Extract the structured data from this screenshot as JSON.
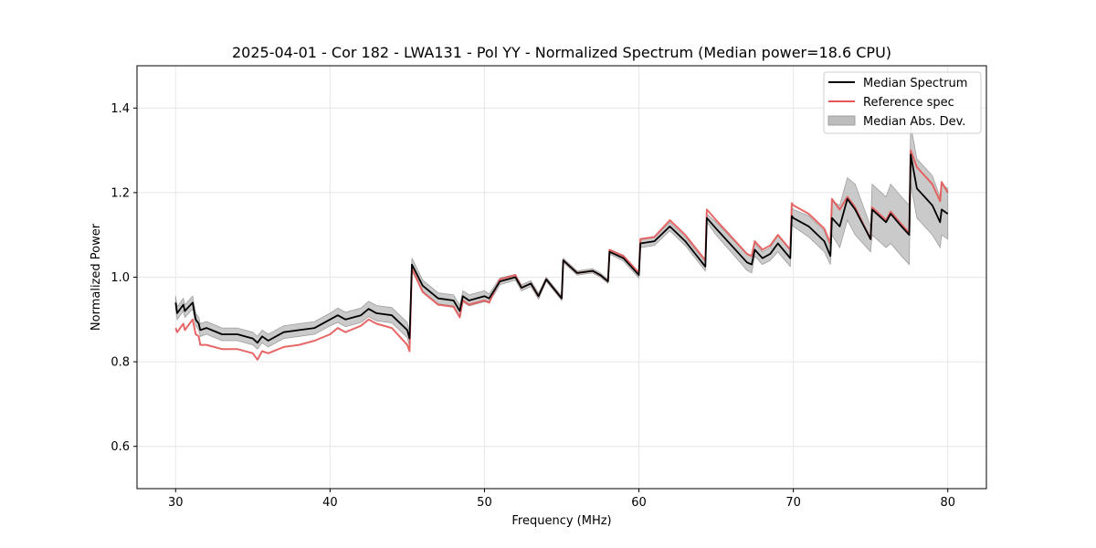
{
  "chart_data": {
    "type": "line",
    "title": "2025-04-01 - Cor 182 - LWA131 - Pol YY - Normalized Spectrum (Median power=18.6 CPU)",
    "xlabel": "Frequency (MHz)",
    "ylabel": "Normalized Power",
    "xlim": [
      27.5,
      82.5
    ],
    "ylim": [
      0.5,
      1.5
    ],
    "xticks": [
      30,
      40,
      50,
      60,
      70,
      80
    ],
    "yticks": [
      0.6,
      0.8,
      1.0,
      1.2,
      1.4
    ],
    "xtick_labels": [
      "30",
      "40",
      "50",
      "60",
      "70",
      "80"
    ],
    "ytick_labels": [
      "0.6",
      "0.8",
      "1.0",
      "1.2",
      "1.4"
    ],
    "grid": true,
    "legend_position": "top-right",
    "colors": {
      "median": "#000000",
      "reference": "#e45756",
      "mad_fill": "#bdbdbd",
      "grid": "#e6e6e6"
    },
    "legend": [
      {
        "label": "Median Spectrum",
        "kind": "line",
        "color": "#000000"
      },
      {
        "label": "Reference spec",
        "kind": "line",
        "color": "#e45756"
      },
      {
        "label": "Median Abs. Dev.",
        "kind": "patch",
        "color": "#bdbdbd"
      }
    ],
    "series": [
      {
        "name": "Median Spectrum",
        "x": [
          30.0,
          30.1,
          30.5,
          30.6,
          31.1,
          31.3,
          31.5,
          31.6,
          32.0,
          33.0,
          34.0,
          35.0,
          35.3,
          35.6,
          36.0,
          37.0,
          38.0,
          39.0,
          40.0,
          40.5,
          41.0,
          42.0,
          42.5,
          43.0,
          44.0,
          45.0,
          45.15,
          45.3,
          46.0,
          47.0,
          48.0,
          48.4,
          48.6,
          49.0,
          50.0,
          50.3,
          51.0,
          52.0,
          52.4,
          53.0,
          53.5,
          54.0,
          55.0,
          55.1,
          56.0,
          57.0,
          57.5,
          58.0,
          58.1,
          59.0,
          60.0,
          60.1,
          61.0,
          62.0,
          63.0,
          64.3,
          64.4,
          65.0,
          66.0,
          67.0,
          67.3,
          67.5,
          68.0,
          68.5,
          69.0,
          69.8,
          69.9,
          70.0,
          71.0,
          72.0,
          72.4,
          72.5,
          73.0,
          73.5,
          74.0,
          75.0,
          75.1,
          76.0,
          76.3,
          77.0,
          77.5,
          77.6,
          78.0,
          79.0,
          79.5,
          79.6,
          80.0
        ],
        "values": [
          0.94,
          0.915,
          0.935,
          0.92,
          0.94,
          0.9,
          0.89,
          0.875,
          0.88,
          0.865,
          0.865,
          0.855,
          0.845,
          0.86,
          0.85,
          0.87,
          0.875,
          0.88,
          0.9,
          0.91,
          0.9,
          0.91,
          0.925,
          0.915,
          0.91,
          0.875,
          0.855,
          1.03,
          0.98,
          0.95,
          0.945,
          0.92,
          0.955,
          0.945,
          0.955,
          0.95,
          0.99,
          1.0,
          0.975,
          0.985,
          0.955,
          0.995,
          0.95,
          1.04,
          1.01,
          1.015,
          1.005,
          0.99,
          1.06,
          1.045,
          1.005,
          1.08,
          1.085,
          1.12,
          1.085,
          1.025,
          1.14,
          1.115,
          1.075,
          1.035,
          1.03,
          1.065,
          1.045,
          1.055,
          1.08,
          1.045,
          1.145,
          1.14,
          1.12,
          1.085,
          1.05,
          1.14,
          1.12,
          1.185,
          1.16,
          1.09,
          1.16,
          1.13,
          1.15,
          1.12,
          1.1,
          1.29,
          1.21,
          1.17,
          1.13,
          1.16,
          1.15
        ]
      },
      {
        "name": "Reference spec",
        "x": [
          30.0,
          30.1,
          30.5,
          30.6,
          31.1,
          31.3,
          31.5,
          31.6,
          32.0,
          33.0,
          34.0,
          35.0,
          35.3,
          35.6,
          36.0,
          37.0,
          38.0,
          39.0,
          40.0,
          40.5,
          41.0,
          42.0,
          42.5,
          43.0,
          44.0,
          45.0,
          45.15,
          45.3,
          46.0,
          47.0,
          48.0,
          48.4,
          48.6,
          49.0,
          50.0,
          50.3,
          51.0,
          52.0,
          52.4,
          53.0,
          53.5,
          54.0,
          55.0,
          55.1,
          56.0,
          57.0,
          57.5,
          58.0,
          58.1,
          59.0,
          60.0,
          60.1,
          61.0,
          62.0,
          63.0,
          64.3,
          64.4,
          65.0,
          66.0,
          67.0,
          67.3,
          67.5,
          68.0,
          68.5,
          69.0,
          69.8,
          69.9,
          70.0,
          71.0,
          72.0,
          72.4,
          72.5,
          73.0,
          73.5,
          74.0,
          75.0,
          75.1,
          76.0,
          76.3,
          77.0,
          77.5,
          77.6,
          78.0,
          79.0,
          79.5,
          79.6,
          80.0
        ],
        "values": [
          0.88,
          0.87,
          0.89,
          0.875,
          0.9,
          0.865,
          0.86,
          0.84,
          0.84,
          0.83,
          0.83,
          0.82,
          0.805,
          0.825,
          0.82,
          0.835,
          0.84,
          0.85,
          0.865,
          0.88,
          0.87,
          0.885,
          0.9,
          0.89,
          0.88,
          0.84,
          0.825,
          1.02,
          0.965,
          0.935,
          0.93,
          0.905,
          0.945,
          0.935,
          0.945,
          0.94,
          0.995,
          1.005,
          0.975,
          0.985,
          0.955,
          0.995,
          0.95,
          1.04,
          1.01,
          1.015,
          1.005,
          0.99,
          1.065,
          1.05,
          1.01,
          1.09,
          1.095,
          1.135,
          1.1,
          1.04,
          1.16,
          1.135,
          1.095,
          1.055,
          1.05,
          1.085,
          1.065,
          1.075,
          1.1,
          1.065,
          1.175,
          1.17,
          1.15,
          1.115,
          1.08,
          1.185,
          1.16,
          1.19,
          1.165,
          1.09,
          1.165,
          1.135,
          1.155,
          1.125,
          1.105,
          1.3,
          1.26,
          1.22,
          1.18,
          1.225,
          1.2
        ]
      },
      {
        "name": "Median Abs. Dev.",
        "x": [
          30.0,
          30.1,
          30.5,
          30.6,
          31.1,
          31.3,
          31.5,
          31.6,
          32.0,
          33.0,
          34.0,
          35.0,
          35.3,
          35.6,
          36.0,
          37.0,
          38.0,
          39.0,
          40.0,
          40.5,
          41.0,
          42.0,
          42.5,
          43.0,
          44.0,
          45.0,
          45.15,
          45.3,
          46.0,
          47.0,
          48.0,
          48.4,
          48.6,
          49.0,
          50.0,
          50.3,
          51.0,
          52.0,
          52.4,
          53.0,
          53.5,
          54.0,
          55.0,
          55.1,
          56.0,
          57.0,
          57.5,
          58.0,
          58.1,
          59.0,
          60.0,
          60.1,
          61.0,
          62.0,
          63.0,
          64.3,
          64.4,
          65.0,
          66.0,
          67.0,
          67.3,
          67.5,
          68.0,
          68.5,
          69.0,
          69.8,
          69.9,
          70.0,
          71.0,
          72.0,
          72.4,
          72.5,
          73.0,
          73.5,
          74.0,
          75.0,
          75.1,
          76.0,
          76.3,
          77.0,
          77.5,
          77.6,
          78.0,
          79.0,
          79.5,
          79.6,
          80.0
        ],
        "lower": [
          0.925,
          0.9,
          0.92,
          0.905,
          0.925,
          0.885,
          0.875,
          0.86,
          0.865,
          0.85,
          0.85,
          0.84,
          0.83,
          0.845,
          0.835,
          0.855,
          0.86,
          0.865,
          0.885,
          0.893,
          0.883,
          0.893,
          0.907,
          0.897,
          0.892,
          0.857,
          0.837,
          1.015,
          0.967,
          0.937,
          0.932,
          0.907,
          0.942,
          0.932,
          0.942,
          0.94,
          0.982,
          0.993,
          0.968,
          0.978,
          0.948,
          0.99,
          0.945,
          1.035,
          1.005,
          1.01,
          1.0,
          0.985,
          1.055,
          1.038,
          0.998,
          1.07,
          1.075,
          1.11,
          1.075,
          1.015,
          1.13,
          1.1,
          1.058,
          1.016,
          1.01,
          1.05,
          1.03,
          1.04,
          1.06,
          1.025,
          1.125,
          1.12,
          1.095,
          1.06,
          1.03,
          1.1,
          1.07,
          1.135,
          1.1,
          1.06,
          1.1,
          1.07,
          1.08,
          1.05,
          1.03,
          1.22,
          1.14,
          1.1,
          1.07,
          1.1,
          1.09
        ],
        "upper": [
          0.955,
          0.93,
          0.95,
          0.935,
          0.955,
          0.915,
          0.905,
          0.89,
          0.895,
          0.88,
          0.88,
          0.87,
          0.86,
          0.875,
          0.865,
          0.885,
          0.89,
          0.895,
          0.915,
          0.927,
          0.917,
          0.927,
          0.943,
          0.933,
          0.928,
          0.893,
          0.873,
          1.045,
          0.993,
          0.963,
          0.958,
          0.933,
          0.968,
          0.958,
          0.968,
          0.96,
          0.998,
          1.007,
          0.982,
          0.992,
          0.962,
          1.0,
          0.955,
          1.045,
          1.015,
          1.02,
          1.01,
          0.995,
          1.065,
          1.052,
          1.012,
          1.09,
          1.095,
          1.13,
          1.095,
          1.035,
          1.15,
          1.13,
          1.092,
          1.054,
          1.05,
          1.08,
          1.06,
          1.07,
          1.1,
          1.065,
          1.165,
          1.16,
          1.145,
          1.11,
          1.07,
          1.18,
          1.17,
          1.235,
          1.22,
          1.12,
          1.22,
          1.19,
          1.22,
          1.19,
          1.17,
          1.36,
          1.28,
          1.24,
          1.19,
          1.22,
          1.21
        ]
      }
    ]
  }
}
